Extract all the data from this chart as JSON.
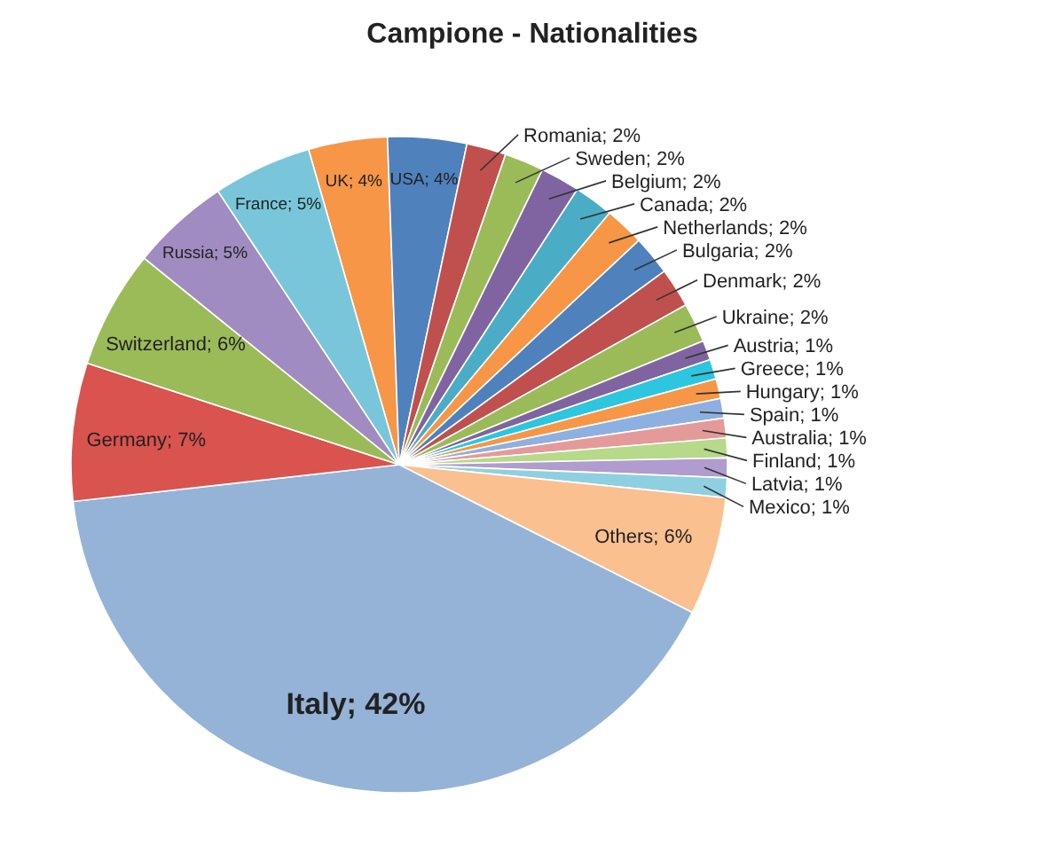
{
  "chart_data": {
    "type": "pie",
    "title": "Campione - Nationalities",
    "categories": [
      "UK",
      "USA",
      "Romania",
      "Sweden",
      "Belgium",
      "Canada",
      "Netherlands",
      "Bulgaria",
      "Denmark",
      "Ukraine",
      "Austria",
      "Greece",
      "Hungary",
      "Spain",
      "Australia",
      "Finland",
      "Latvia",
      "Mexico",
      "Others",
      "Italy",
      "Germany",
      "Switzerland",
      "Russia",
      "France"
    ],
    "values": [
      4,
      4,
      2,
      2,
      2,
      2,
      2,
      2,
      2,
      2,
      1,
      1,
      1,
      1,
      1,
      1,
      1,
      1,
      6,
      42,
      7,
      6,
      5,
      5
    ],
    "value_labels": [
      "4%",
      "4%",
      "2%",
      "2%",
      "2%",
      "2%",
      "2%",
      "2%",
      "2%",
      "2%",
      "1%",
      "1%",
      "1%",
      "1%",
      "1%",
      "1%",
      "1%",
      "1%",
      "6%",
      "42%",
      "7%",
      "6%",
      "5%",
      "5%"
    ],
    "colors": [
      "#f79646",
      "#4f81bd",
      "#c0504d",
      "#9bbb59",
      "#8064a2",
      "#4bacc6",
      "#f79646",
      "#4f81bd",
      "#c0504d",
      "#9bbb59",
      "#8064a2",
      "#2cc6df",
      "#f79646",
      "#8eb0e0",
      "#e59a9a",
      "#b6d98a",
      "#b09ccf",
      "#8fd0e0",
      "#fac090",
      "#95b3d7",
      "#d9534f",
      "#9bbb59",
      "#a08cc0",
      "#79c6da"
    ],
    "data_labels": true
  }
}
